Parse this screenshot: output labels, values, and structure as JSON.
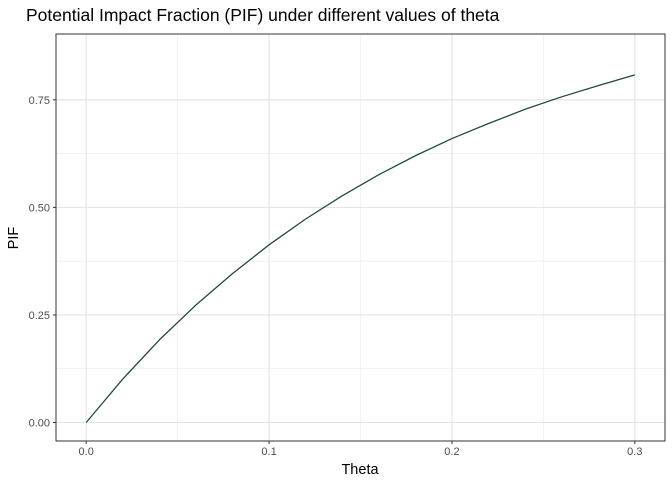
{
  "chart_data": {
    "type": "line",
    "title": "Potential Impact Fraction (PIF) under different values of theta",
    "xlabel": "Theta",
    "ylabel": "PIF",
    "xlim": [
      -0.0165,
      0.3165
    ],
    "ylim": [
      -0.043,
      0.903
    ],
    "x_ticks": [
      0.0,
      0.1,
      0.2,
      0.3
    ],
    "x_tick_labels": [
      "0.0",
      "0.1",
      "0.2",
      "0.3"
    ],
    "y_ticks": [
      0.0,
      0.25,
      0.5,
      0.75
    ],
    "y_tick_labels": [
      "0.00",
      "0.25",
      "0.50",
      "0.75"
    ],
    "grid": true,
    "line_color": "#1f4a3f",
    "series": [
      {
        "x": [
          0.0,
          0.02,
          0.04,
          0.06,
          0.08,
          0.1,
          0.12,
          0.14,
          0.16,
          0.18,
          0.2,
          0.22,
          0.24,
          0.26,
          0.28,
          0.3
        ],
        "values": [
          0.0,
          0.101,
          0.192,
          0.273,
          0.346,
          0.413,
          0.473,
          0.527,
          0.576,
          0.62,
          0.66,
          0.695,
          0.728,
          0.757,
          0.783,
          0.808
        ]
      }
    ]
  }
}
